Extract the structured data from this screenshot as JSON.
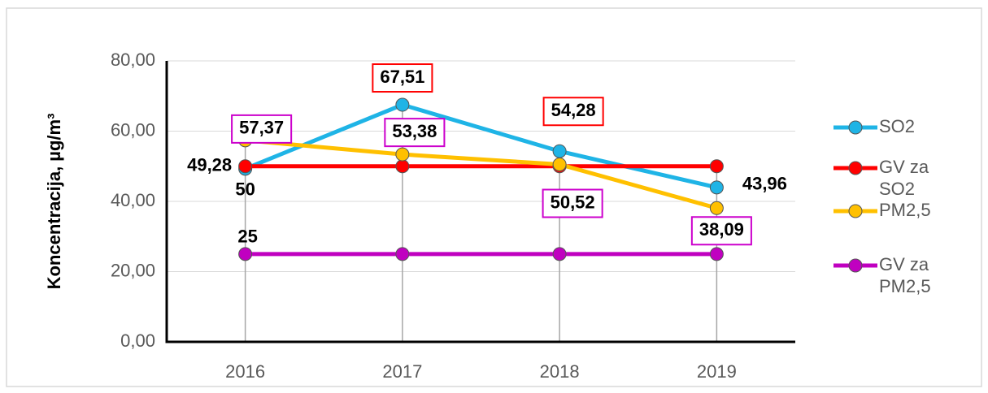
{
  "chart_data": {
    "type": "line",
    "y_label": "Koncentracija, µg/m³",
    "categories": [
      "2016",
      "2017",
      "2018",
      "2019"
    ],
    "series": [
      {
        "name": "SO2",
        "color": "#1fb4e6",
        "values": [
          49.28,
          67.51,
          54.28,
          43.96
        ],
        "value_labels": [
          "49,28",
          "67,51",
          "54,28",
          "43,96"
        ],
        "label_box_color": "#ff0000"
      },
      {
        "name": "GV za SO2",
        "color": "#ff0000",
        "values": [
          50,
          50,
          50,
          50
        ],
        "value_labels": [
          "50",
          null,
          null,
          null
        ]
      },
      {
        "name": "PM2,5",
        "color": "#ffc000",
        "values": [
          57.37,
          53.38,
          50.52,
          38.09
        ],
        "value_labels": [
          "57,37",
          "53,38",
          "50,52",
          "38,09"
        ],
        "label_box_color": "#cc00cc"
      },
      {
        "name": "GV za PM2,5",
        "color": "#c000c0",
        "values": [
          25,
          25,
          25,
          25
        ],
        "value_labels": [
          "25",
          null,
          null,
          null
        ]
      }
    ],
    "ylim": [
      0,
      80
    ],
    "yticks": [
      {
        "value": 0,
        "label": "0,00"
      },
      {
        "value": 20,
        "label": "20,00"
      },
      {
        "value": 40,
        "label": "40,00"
      },
      {
        "value": 60,
        "label": "60,00"
      },
      {
        "value": 80,
        "label": "80,00"
      }
    ],
    "grid": true,
    "legend": "right"
  }
}
